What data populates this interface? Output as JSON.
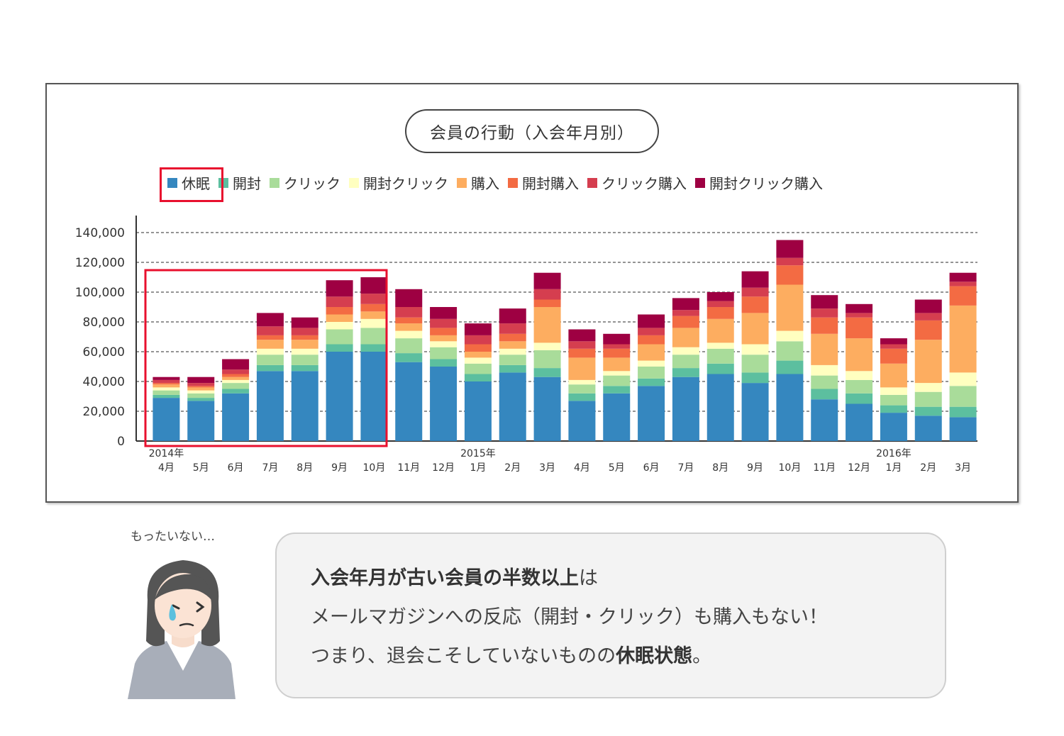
{
  "chart_data": {
    "type": "bar",
    "stacked": true,
    "title": "会員の行動（入会年月別）",
    "categories": [
      "4月",
      "5月",
      "6月",
      "7月",
      "8月",
      "9月",
      "10月",
      "11月",
      "12月",
      "1月",
      "2月",
      "3月",
      "4月",
      "5月",
      "6月",
      "7月",
      "8月",
      "9月",
      "10月",
      "11月",
      "12月",
      "1月",
      "2月",
      "3月"
    ],
    "year_labels": [
      {
        "index": 0,
        "label": "2014年"
      },
      {
        "index": 9,
        "label": "2015年"
      },
      {
        "index": 21,
        "label": "2016年"
      }
    ],
    "ylim": [
      0,
      140000
    ],
    "yticks": [
      "0",
      "20,000",
      "40,000",
      "60,000",
      "80,000",
      "100,000",
      "120,000",
      "140,000"
    ],
    "ytick_values": [
      0,
      20000,
      40000,
      60000,
      80000,
      100000,
      120000,
      140000
    ],
    "grid": true,
    "legend_position": "top",
    "series": [
      {
        "name": "休眠",
        "color": "#3587bf",
        "values": [
          29000,
          27000,
          32000,
          47000,
          47000,
          60000,
          60000,
          53000,
          50000,
          40000,
          46000,
          43000,
          27000,
          32000,
          37000,
          43000,
          45000,
          39000,
          45000,
          28000,
          25000,
          19000,
          17000,
          16000
        ]
      },
      {
        "name": "開封",
        "color": "#5cbf9f",
        "values": [
          2000,
          2000,
          3000,
          4000,
          4000,
          5000,
          5000,
          6000,
          5000,
          5000,
          5000,
          6000,
          5000,
          5000,
          5000,
          6000,
          7000,
          7000,
          9000,
          7000,
          7000,
          5000,
          6000,
          7000
        ]
      },
      {
        "name": "クリック",
        "color": "#a9dc9a",
        "values": [
          3000,
          3000,
          4000,
          7000,
          7000,
          10000,
          11000,
          10000,
          8000,
          7000,
          7000,
          12000,
          6000,
          7000,
          8000,
          9000,
          10000,
          12000,
          13000,
          9000,
          9000,
          7000,
          10000,
          14000
        ]
      },
      {
        "name": "開封クリック",
        "color": "#ffffc0",
        "values": [
          2000,
          2000,
          2000,
          4000,
          4000,
          5000,
          6000,
          5000,
          4000,
          4000,
          4000,
          5000,
          3000,
          3000,
          4000,
          5000,
          4000,
          7000,
          7000,
          7000,
          6000,
          5000,
          6000,
          9000
        ]
      },
      {
        "name": "購入",
        "color": "#fdad60",
        "values": [
          2000,
          2000,
          2000,
          6000,
          6000,
          5000,
          5000,
          5000,
          4000,
          4000,
          5000,
          24000,
          15000,
          9000,
          11000,
          13000,
          16000,
          21000,
          31000,
          21000,
          22000,
          16000,
          29000,
          45000
        ]
      },
      {
        "name": "開封購入",
        "color": "#f36b43",
        "values": [
          1000,
          1000,
          2000,
          3000,
          3000,
          5000,
          5000,
          4000,
          5000,
          5000,
          5000,
          5000,
          6000,
          6000,
          6000,
          8000,
          8000,
          11000,
          13000,
          11000,
          14000,
          10000,
          13000,
          13000
        ]
      },
      {
        "name": "クリック購入",
        "color": "#d53e4f",
        "values": [
          2000,
          2000,
          3000,
          6000,
          5000,
          7000,
          7000,
          7000,
          6000,
          6000,
          7000,
          7000,
          5000,
          3000,
          5000,
          4000,
          4000,
          6000,
          5000,
          6000,
          3000,
          3000,
          5000,
          3000
        ]
      },
      {
        "name": "開封クリック購入",
        "color": "#9e0042",
        "values": [
          2000,
          4000,
          7000,
          9000,
          7000,
          11000,
          11000,
          12000,
          8000,
          8000,
          10000,
          11000,
          8000,
          7000,
          9000,
          8000,
          6000,
          11000,
          12000,
          9000,
          6000,
          4000,
          9000,
          6000
        ]
      }
    ]
  },
  "note": "もったいない…",
  "bubble": {
    "line1_bold": "入会年月が古い会員の半数以上",
    "line1_rest": "は",
    "line2": "メールマガジンへの反応（開封・クリック）も購入もない！",
    "line3_start": "つまり、退会こそしていないものの",
    "line3_bold": "休眠状態",
    "line3_end": "。"
  },
  "colors": {
    "highlight": "#e8102e",
    "bubble_bg": "#f3f3f3"
  }
}
